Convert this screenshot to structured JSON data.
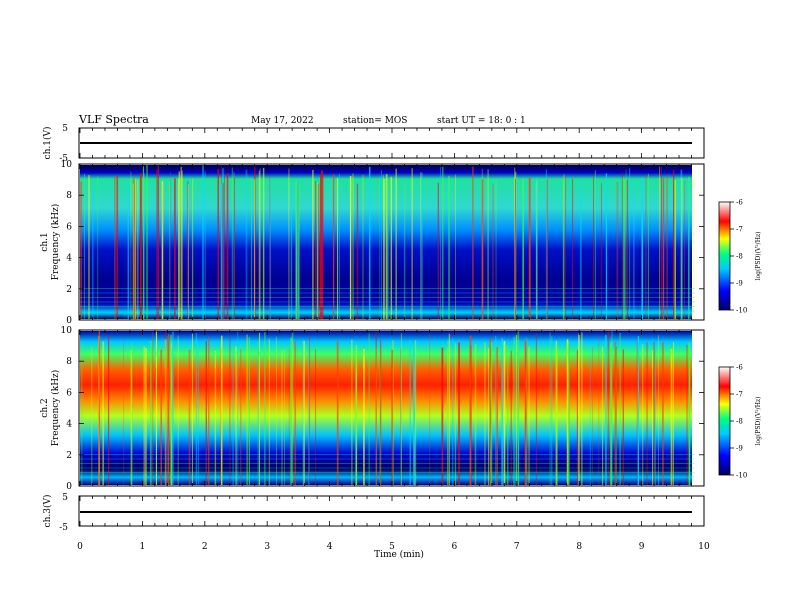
{
  "header": {
    "title": "VLF Spectra",
    "date": "May 17, 2022",
    "station": "station= MOS",
    "start_ut": "start  UT =   18: 0  : 1"
  },
  "panels": {
    "ch1_wave": {
      "ylabel": "ch.1(V)",
      "ticks": [
        "5",
        "-5"
      ]
    },
    "ch1_spec": {
      "ylabel_1": "ch.1",
      "ylabel_2": "Frequency (kHz)",
      "ticks": [
        "0",
        "2",
        "4",
        "6",
        "8",
        "10"
      ]
    },
    "ch2_spec": {
      "ylabel_1": "ch.2",
      "ylabel_2": "Frequency (kHz)",
      "ticks": [
        "0",
        "2",
        "4",
        "6",
        "8",
        "10"
      ]
    },
    "ch3_wave": {
      "ylabel": "ch.3(V)",
      "ticks": [
        "5",
        "-5"
      ]
    }
  },
  "xaxis": {
    "label": "Time  (min)",
    "ticks": [
      "0",
      "1",
      "2",
      "3",
      "4",
      "5",
      "6",
      "7",
      "8",
      "9",
      "10"
    ]
  },
  "colorbar": {
    "ticks": [
      "-6",
      "-7",
      "-8",
      "-9",
      "-10"
    ],
    "label": "log(PSD)(V²/Hz)"
  },
  "chart_data": {
    "type": "heatmap",
    "title": "VLF Spectra",
    "x_range": [
      0,
      10
    ],
    "x_unit": "min",
    "y_range": [
      0,
      10
    ],
    "y_unit": "kHz",
    "color_range": [
      -10,
      -6
    ],
    "colors": [
      "#000066",
      "#0000ff",
      "#00c8ff",
      "#00ff80",
      "#ffff00",
      "#ff0000",
      "#ffffff"
    ],
    "channels": [
      "ch.1",
      "ch.2"
    ],
    "wave_range": [
      -5,
      5
    ],
    "data_end_min": 9.85
  }
}
